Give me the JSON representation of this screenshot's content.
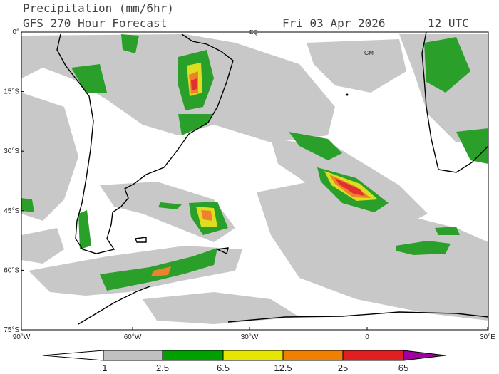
{
  "header": {
    "title": "Precipitation (mm/6hr)",
    "subtitle": "GFS 270 Hour Forecast",
    "date": "Fri 03 Apr 2026",
    "time": "12 UTC"
  },
  "axes": {
    "lat_labels": [
      "0°",
      "15°S",
      "30°S",
      "45°S",
      "60°S",
      "75°S"
    ],
    "lon_labels": [
      "90°W",
      "60°W",
      "30°W",
      "0",
      "30°E"
    ]
  },
  "annotations": [
    "EQ",
    "GM"
  ],
  "legend": {
    "labels": [
      ".1",
      "2.5",
      "6.5",
      "12.5",
      "25",
      "65"
    ],
    "colors": [
      "#ffffff",
      "#c0c0c0",
      "#00a000",
      "#e6e600",
      "#f08000",
      "#e02020",
      "#a000a0"
    ]
  }
}
